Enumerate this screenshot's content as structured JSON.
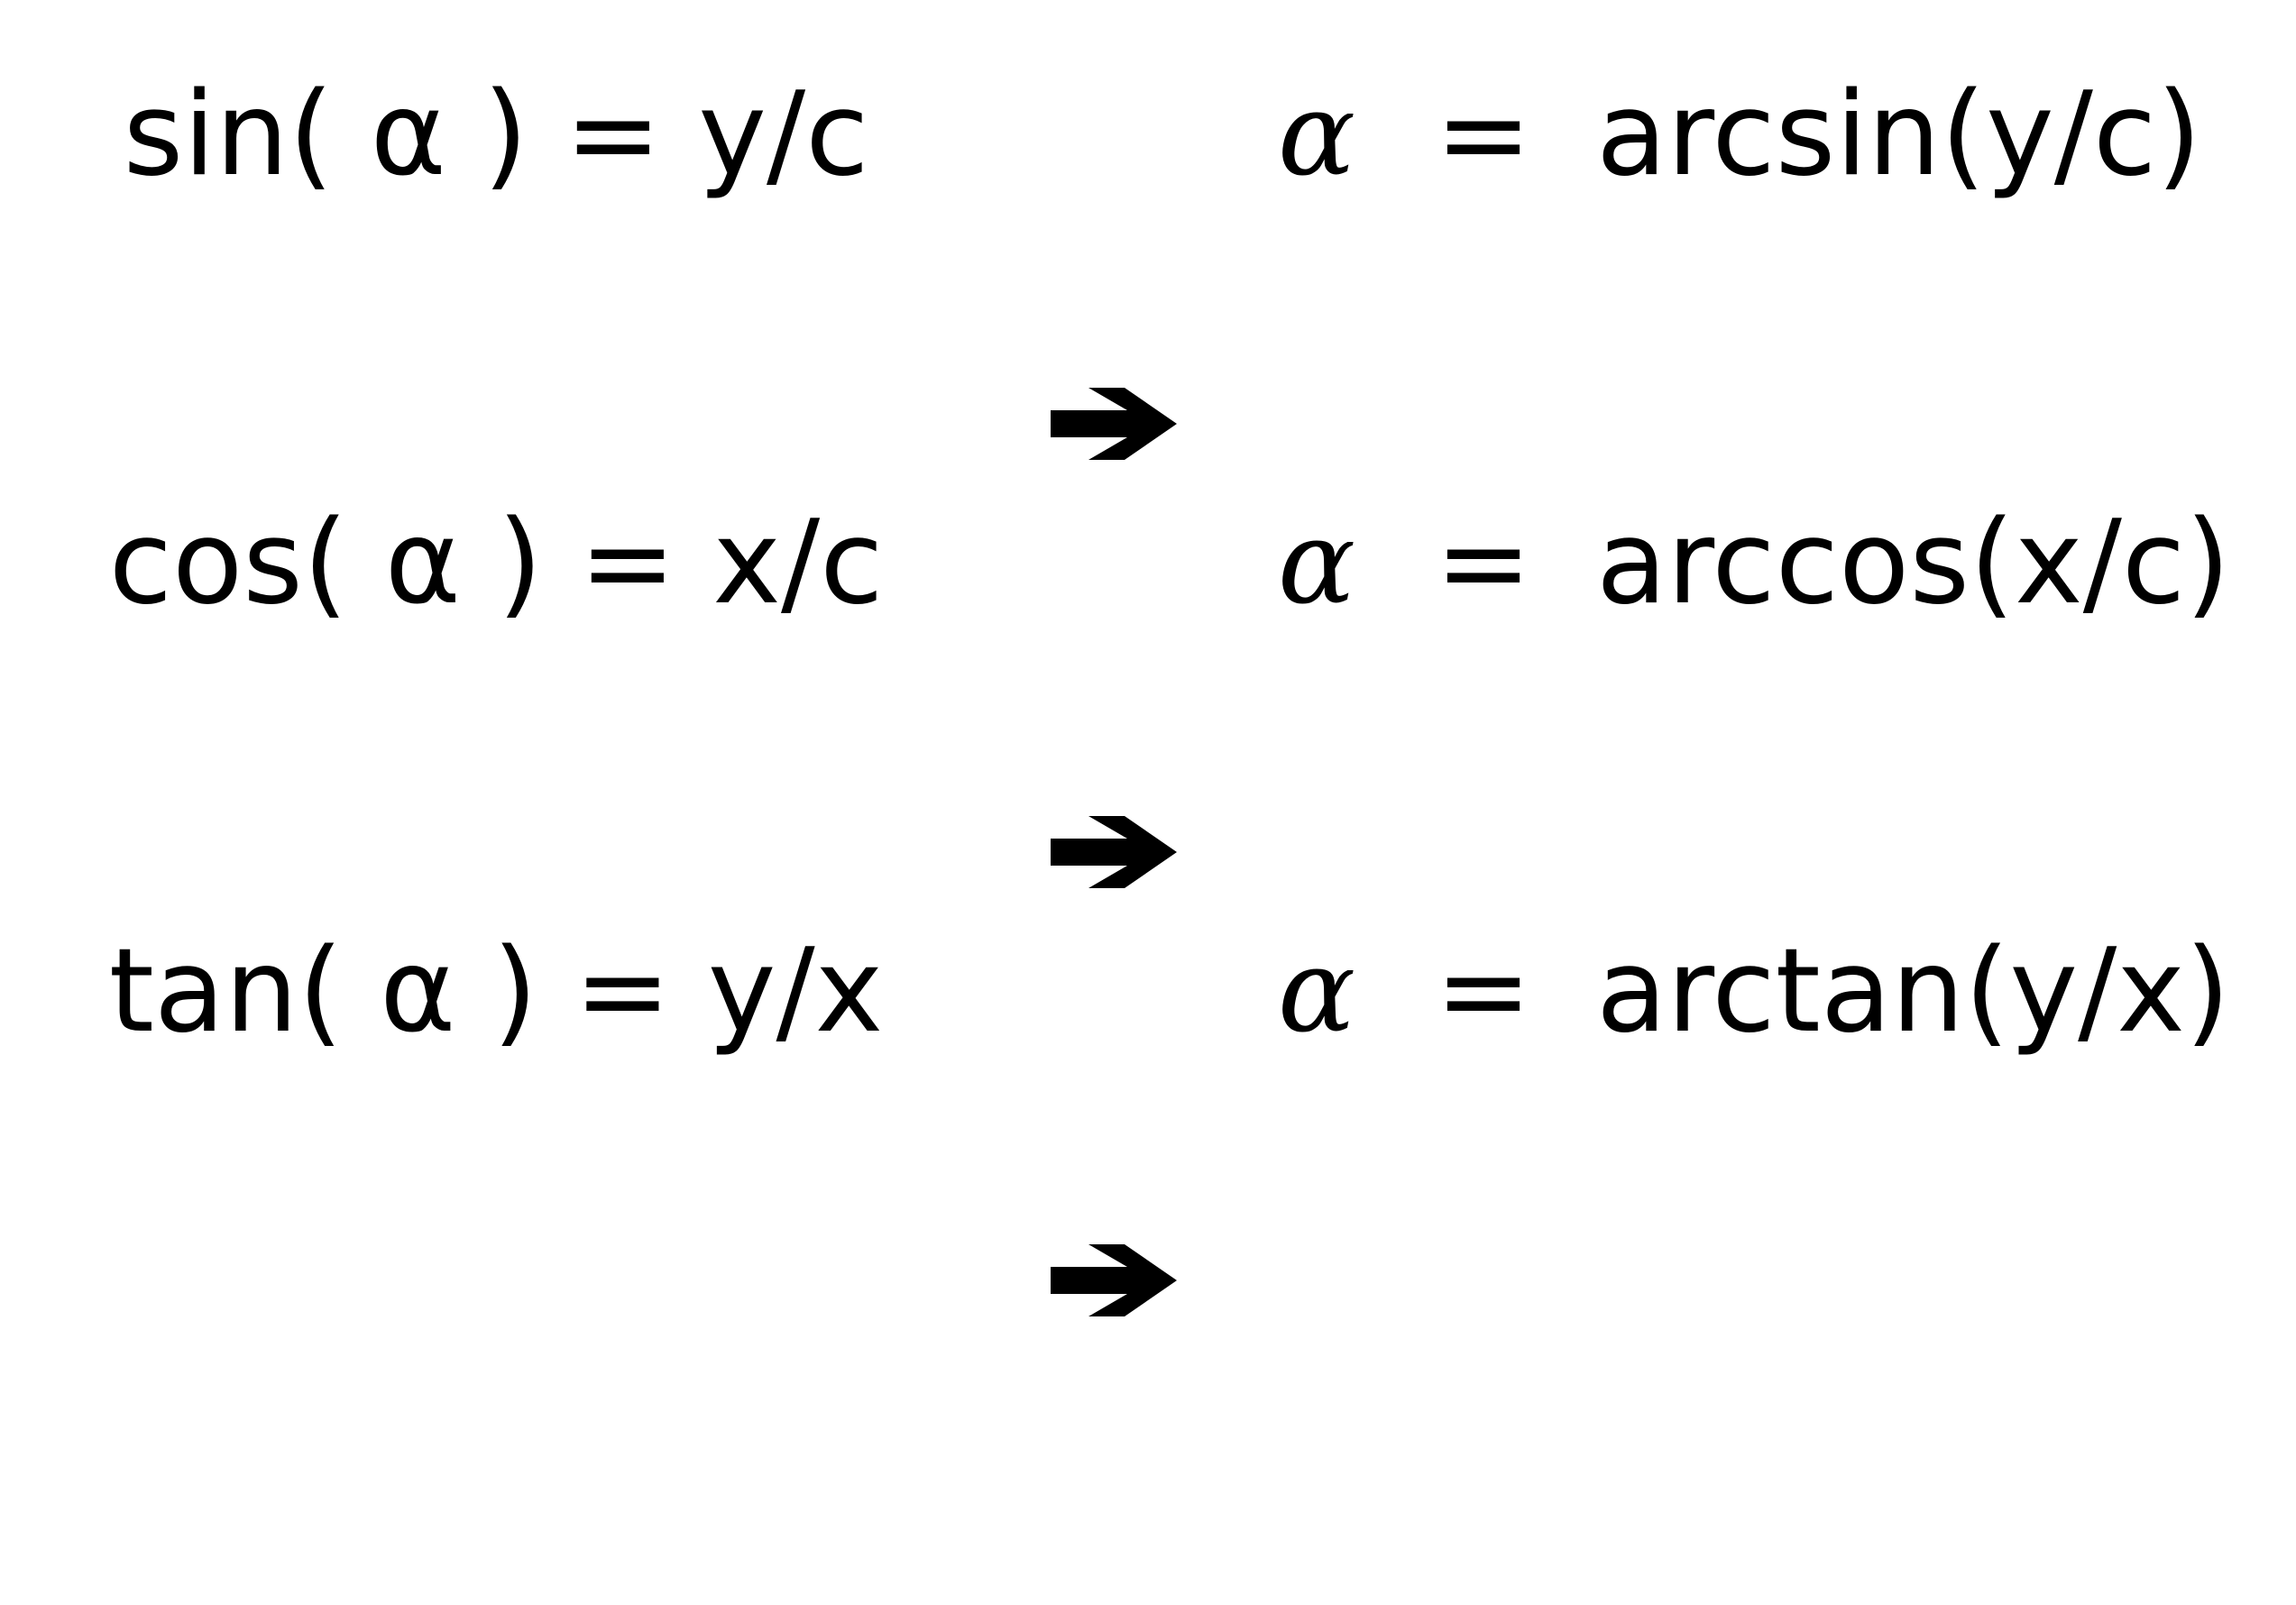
{
  "equations": [
    {
      "id": "sin",
      "lhs": "sin( α ) = y/c",
      "alpha": "α",
      "equals": "=",
      "rhs": "arcsin(y/c)"
    },
    {
      "id": "cos",
      "lhs": "cos( α ) = x/c",
      "alpha": "α",
      "equals": "=",
      "rhs": "arccos(x/c)"
    },
    {
      "id": "tan",
      "lhs": "tan( α ) = y/x",
      "alpha": "α",
      "equals": "=",
      "rhs": "arctan(y/x)"
    }
  ],
  "arrow_icon": "right-arrow-icon",
  "colors": {
    "text": "#000000",
    "background": "#ffffff"
  }
}
